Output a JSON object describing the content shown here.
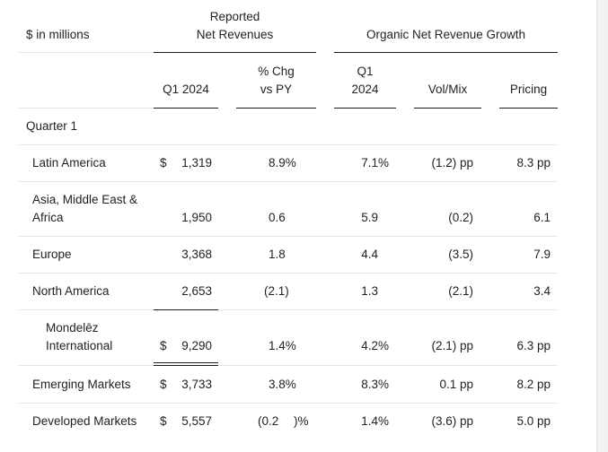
{
  "header": {
    "units_label": "$ in millions",
    "reported_group_line1": "Reported",
    "reported_group_line2": "Net Revenues",
    "organic_group": "Organic Net Revenue Growth",
    "col_q1_2024": "Q1 2024",
    "col_pct_chg_line1": "% Chg",
    "col_pct_chg_line2": "vs PY",
    "col_organic_q1_line1": "Q1",
    "col_organic_q1_line2": "2024",
    "col_vol_mix": "Vol/Mix",
    "col_pricing": "Pricing"
  },
  "section_label": "Quarter 1",
  "rows": [
    {
      "label": "Latin America",
      "dollar": "$",
      "revenue": "1,319",
      "pct_chg": "8.9%",
      "organic": "7.1%",
      "vol_mix": "(1.2) pp",
      "pricing": "8.3 pp"
    },
    {
      "label_line1": "Asia, Middle East &",
      "label_line2": "Africa",
      "dollar": "",
      "revenue": "1,950",
      "pct_chg": "0.6",
      "organic": "5.9",
      "vol_mix": "(0.2)",
      "pricing": "6.1"
    },
    {
      "label": "Europe",
      "dollar": "",
      "revenue": "3,368",
      "pct_chg": "1.8",
      "organic": "4.4",
      "vol_mix": "(3.5)",
      "pricing": "7.9"
    },
    {
      "label": "North America",
      "dollar": "",
      "revenue": "2,653",
      "pct_chg": "(2.1)",
      "organic": "1.3",
      "vol_mix": "(2.1)",
      "pricing": "3.4"
    },
    {
      "label_line1": "Mondelēz",
      "label_line2": "International",
      "dollar": "$",
      "revenue": "9,290",
      "pct_chg": "1.4%",
      "organic": "4.2%",
      "vol_mix": "(2.1) pp",
      "pricing": "6.3 pp"
    },
    {
      "label": "Emerging Markets",
      "dollar": "$",
      "revenue": "3,733",
      "pct_chg": "3.8%",
      "organic": "8.3%",
      "vol_mix": "0.1 pp",
      "pricing": "8.2 pp"
    },
    {
      "label": "Developed Markets",
      "dollar": "$",
      "revenue": "5,557",
      "pct_chg": "(0.2",
      "pct_suffix": ")%",
      "organic": "1.4%",
      "vol_mix": "(3.6) pp",
      "pricing": "5.0 pp"
    }
  ]
}
